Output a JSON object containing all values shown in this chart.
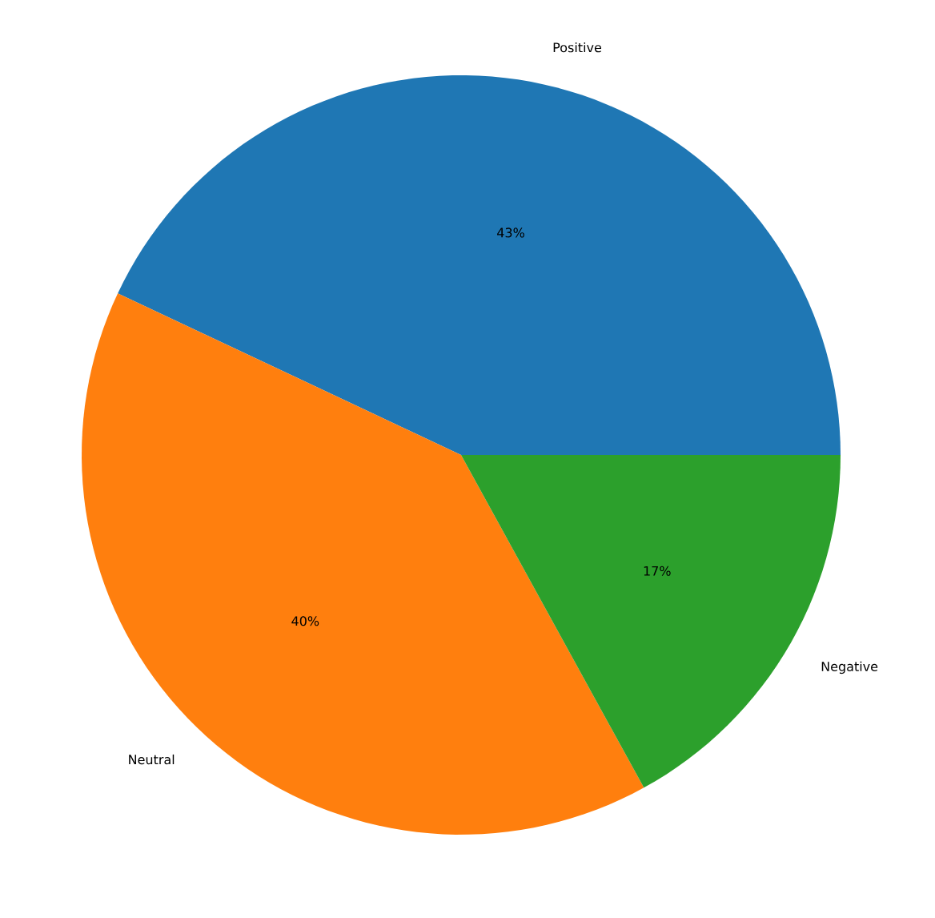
{
  "chart_data": {
    "type": "pie",
    "categories": [
      "Positive",
      "Neutral",
      "Negative"
    ],
    "values": [
      43,
      40,
      17
    ],
    "colors": [
      "#1f77b4",
      "#ff7f0e",
      "#2ca02c"
    ],
    "value_labels": [
      "43%",
      "40%",
      "17%"
    ]
  }
}
